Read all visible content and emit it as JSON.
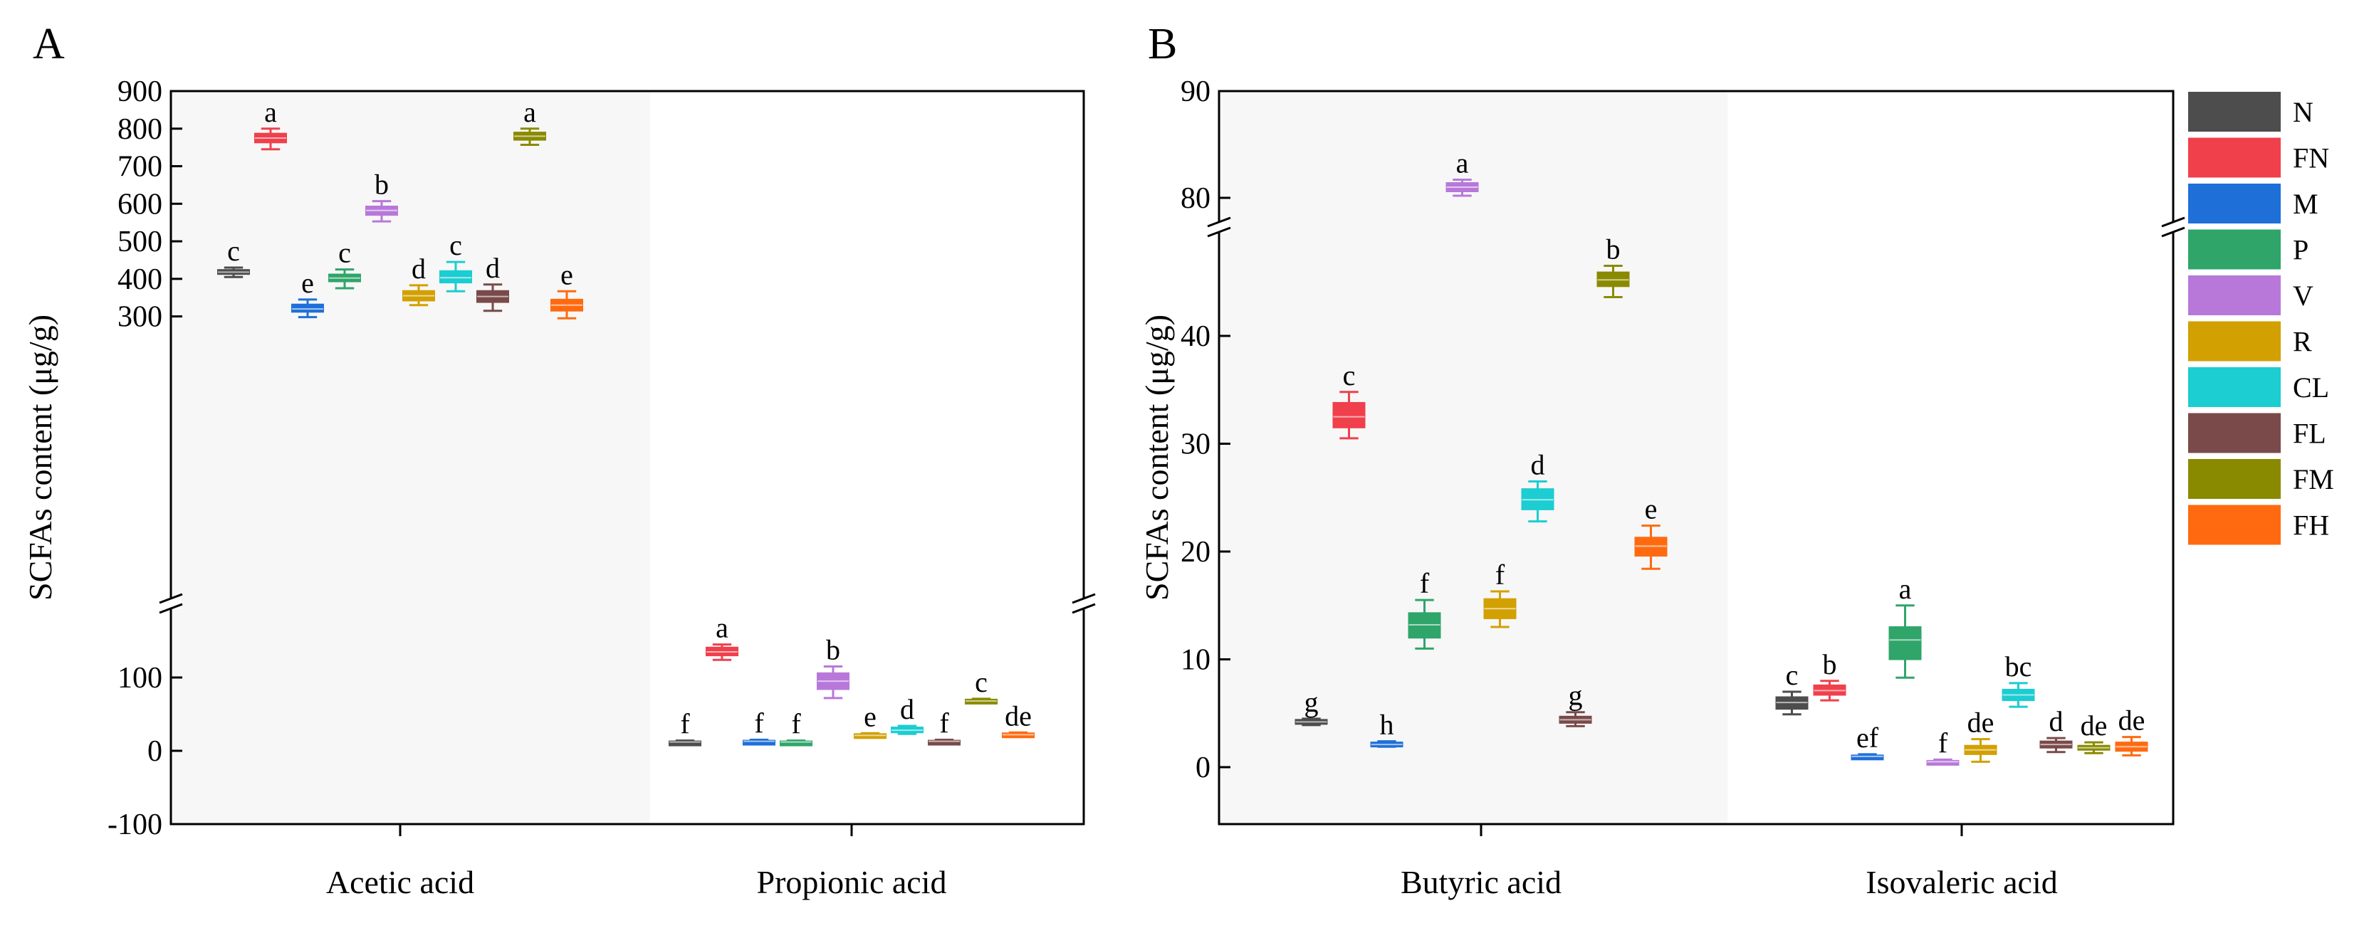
{
  "chart_data": [
    {
      "type": "box",
      "panel_label": "A",
      "ylabel": "SCFAs content (μg/g)",
      "categories": [
        "Acetic acid",
        "Propionic acid"
      ],
      "y_axis": {
        "lower_segment": {
          "range": [
            -100,
            150
          ],
          "ticks": [
            -100,
            0,
            100
          ]
        },
        "upper_segment": {
          "range": [
            250,
            900
          ],
          "ticks": [
            300,
            400,
            500,
            600,
            700,
            800,
            900
          ]
        },
        "break": true
      },
      "shaded_category": "Acetic acid",
      "series": [
        {
          "name": "N",
          "values": [
            {
              "q1": 413,
              "median": 418,
              "q3": 424,
              "min": 405,
              "max": 430,
              "label": "c"
            },
            {
              "q1": 10,
              "median": 12,
              "q3": 13,
              "min": 9,
              "max": 14,
              "label": "f"
            }
          ]
        },
        {
          "name": "FN",
          "values": [
            {
              "q1": 763,
              "median": 775,
              "q3": 787,
              "min": 745,
              "max": 800,
              "label": "a"
            },
            {
              "q1": 130,
              "median": 135,
              "q3": 141,
              "min": 124,
              "max": 145,
              "label": "a"
            }
          ]
        },
        {
          "name": "M",
          "values": [
            {
              "q1": 312,
              "median": 320,
              "q3": 332,
              "min": 298,
              "max": 345,
              "label": "e"
            },
            {
              "q1": 11,
              "median": 13,
              "q3": 14,
              "min": 10,
              "max": 15,
              "label": "f"
            }
          ]
        },
        {
          "name": "P",
          "values": [
            {
              "q1": 393,
              "median": 402,
              "q3": 412,
              "min": 375,
              "max": 425,
              "label": "c"
            },
            {
              "q1": 11,
              "median": 12,
              "q3": 13,
              "min": 10,
              "max": 14,
              "label": "f"
            }
          ]
        },
        {
          "name": "V",
          "values": [
            {
              "q1": 570,
              "median": 582,
              "q3": 593,
              "min": 553,
              "max": 607,
              "label": "b"
            },
            {
              "q1": 84,
              "median": 95,
              "q3": 106,
              "min": 72,
              "max": 115,
              "label": "b"
            }
          ]
        },
        {
          "name": "R",
          "values": [
            {
              "q1": 342,
              "median": 355,
              "q3": 368,
              "min": 330,
              "max": 383,
              "label": "d"
            },
            {
              "q1": 19,
              "median": 21,
              "q3": 23,
              "min": 18,
              "max": 24,
              "label": "e"
            }
          ]
        },
        {
          "name": "CL",
          "values": [
            {
              "q1": 390,
              "median": 403,
              "q3": 421,
              "min": 367,
              "max": 445,
              "label": "c"
            },
            {
              "q1": 25,
              "median": 28,
              "q3": 32,
              "min": 23,
              "max": 34,
              "label": "d"
            }
          ]
        },
        {
          "name": "FL",
          "values": [
            {
              "q1": 338,
              "median": 353,
              "q3": 368,
              "min": 315,
              "max": 385,
              "label": "d"
            },
            {
              "q1": 11,
              "median": 13,
              "q3": 14,
              "min": 10,
              "max": 15,
              "label": "f"
            }
          ]
        },
        {
          "name": "FM",
          "values": [
            {
              "q1": 770,
              "median": 780,
              "q3": 790,
              "min": 757,
              "max": 800,
              "label": "a"
            },
            {
              "q1": 66,
              "median": 68,
              "q3": 70,
              "min": 65,
              "max": 71,
              "label": "c"
            }
          ]
        },
        {
          "name": "FH",
          "values": [
            {
              "q1": 315,
              "median": 330,
              "q3": 345,
              "min": 295,
              "max": 367,
              "label": "e"
            },
            {
              "q1": 21,
              "median": 22,
              "q3": 24,
              "min": 20,
              "max": 25,
              "label": "de"
            }
          ]
        }
      ]
    },
    {
      "type": "box",
      "panel_label": "B",
      "ylabel": "SCFAs content (μg/g)",
      "categories": [
        "Butyric acid",
        "Isovaleric acid"
      ],
      "y_axis": {
        "lower_segment": {
          "range": [
            -5,
            48
          ],
          "ticks": [
            0,
            10,
            20,
            30,
            40
          ]
        },
        "upper_segment": {
          "range": [
            77,
            90
          ],
          "ticks": [
            80,
            90
          ]
        },
        "break": true
      },
      "shaded_category": "Butyric acid",
      "series": [
        {
          "name": "N",
          "values": [
            {
              "q1": 4.0,
              "median": 4.2,
              "q3": 4.4,
              "min": 3.9,
              "max": 4.5,
              "label": "g"
            },
            {
              "q1": 5.4,
              "median": 6.0,
              "q3": 6.5,
              "min": 4.9,
              "max": 7.0,
              "label": "c"
            }
          ]
        },
        {
          "name": "FN",
          "values": [
            {
              "q1": 31.5,
              "median": 32.5,
              "q3": 33.8,
              "min": 30.5,
              "max": 34.8,
              "label": "c"
            },
            {
              "q1": 6.7,
              "median": 7.1,
              "q3": 7.6,
              "min": 6.2,
              "max": 8.0,
              "label": "b"
            }
          ]
        },
        {
          "name": "M",
          "values": [
            {
              "q1": 2.0,
              "median": 2.1,
              "q3": 2.3,
              "min": 1.9,
              "max": 2.4,
              "label": "h"
            },
            {
              "q1": 0.9,
              "median": 1.0,
              "q3": 1.1,
              "min": 0.8,
              "max": 1.2,
              "label": "ef"
            }
          ]
        },
        {
          "name": "P",
          "values": [
            {
              "q1": 12.0,
              "median": 13.2,
              "q3": 14.3,
              "min": 11.0,
              "max": 15.5,
              "label": "f"
            },
            {
              "q1": 10.0,
              "median": 11.8,
              "q3": 13.0,
              "min": 8.3,
              "max": 15.0,
              "label": "a"
            }
          ]
        },
        {
          "name": "V",
          "values": [
            {
              "q1": 80.6,
              "median": 81.0,
              "q3": 81.4,
              "min": 80.2,
              "max": 81.7,
              "label": "a"
            },
            {
              "q1": 0.4,
              "median": 0.5,
              "q3": 0.6,
              "min": 0.3,
              "max": 0.7,
              "label": "f"
            }
          ]
        },
        {
          "name": "R",
          "values": [
            {
              "q1": 13.8,
              "median": 14.7,
              "q3": 15.6,
              "min": 13.0,
              "max": 16.3,
              "label": "f"
            },
            {
              "q1": 1.2,
              "median": 1.6,
              "q3": 2.0,
              "min": 0.5,
              "max": 2.6,
              "label": "de"
            }
          ]
        },
        {
          "name": "CL",
          "values": [
            {
              "q1": 23.9,
              "median": 24.8,
              "q3": 25.8,
              "min": 22.8,
              "max": 26.5,
              "label": "d"
            },
            {
              "q1": 6.2,
              "median": 6.7,
              "q3": 7.2,
              "min": 5.6,
              "max": 7.8,
              "label": "bc"
            }
          ]
        },
        {
          "name": "FL",
          "values": [
            {
              "q1": 4.1,
              "median": 4.4,
              "q3": 4.7,
              "min": 3.8,
              "max": 5.1,
              "label": "g"
            },
            {
              "q1": 1.8,
              "median": 2.1,
              "q3": 2.4,
              "min": 1.4,
              "max": 2.7,
              "label": "d"
            }
          ]
        },
        {
          "name": "FM",
          "values": [
            {
              "q1": 44.6,
              "median": 45.2,
              "q3": 45.9,
              "min": 43.6,
              "max": 46.5,
              "label": "b"
            },
            {
              "q1": 1.6,
              "median": 1.8,
              "q3": 2.0,
              "min": 1.3,
              "max": 2.3,
              "label": "de"
            }
          ]
        },
        {
          "name": "FH",
          "values": [
            {
              "q1": 19.6,
              "median": 20.5,
              "q3": 21.3,
              "min": 18.4,
              "max": 22.4,
              "label": "e"
            },
            {
              "q1": 1.5,
              "median": 1.9,
              "q3": 2.3,
              "min": 1.1,
              "max": 2.8,
              "label": "de"
            }
          ]
        }
      ]
    }
  ],
  "legend": {
    "placement": "right",
    "items": [
      {
        "name": "N",
        "color": "#4d4d4d"
      },
      {
        "name": "FN",
        "color": "#f0404b"
      },
      {
        "name": "M",
        "color": "#1f6fd8"
      },
      {
        "name": "P",
        "color": "#2fa56a"
      },
      {
        "name": "V",
        "color": "#b878da"
      },
      {
        "name": "R",
        "color": "#d2a000"
      },
      {
        "name": "CL",
        "color": "#1ccdd1"
      },
      {
        "name": "FL",
        "color": "#7a4a4a"
      },
      {
        "name": "FM",
        "color": "#8a8a00"
      },
      {
        "name": "FH",
        "color": "#ff6a10"
      }
    ]
  }
}
